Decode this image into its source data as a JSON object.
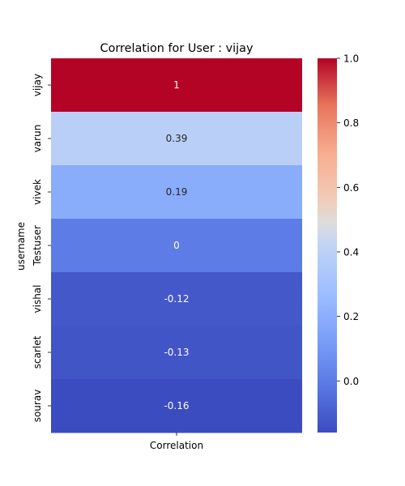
{
  "chart_data": {
    "type": "heatmap",
    "title": "Correlation for User : vijay",
    "xlabel": "",
    "ylabel": "username",
    "x_categories": [
      "Correlation"
    ],
    "y_categories": [
      "vijay",
      "varun",
      "vivek",
      "Testuser",
      "vishal",
      "scarlet",
      "sourav"
    ],
    "values": [
      1,
      0.39,
      0.19,
      0,
      -0.12,
      -0.13,
      -0.16
    ],
    "cell_labels": [
      "1",
      "0.39",
      "0.19",
      "0",
      "-0.12",
      "-0.13",
      "-0.16"
    ],
    "colormap": "coolwarm",
    "color_range": [
      -0.16,
      1.0
    ],
    "colorbar": {
      "ticks": [
        0.0,
        0.2,
        0.4,
        0.6,
        0.8,
        1.0
      ],
      "tick_labels": [
        "0.0",
        "0.2",
        "0.4",
        "0.6",
        "0.8",
        "1.0"
      ],
      "placement": "right"
    }
  }
}
